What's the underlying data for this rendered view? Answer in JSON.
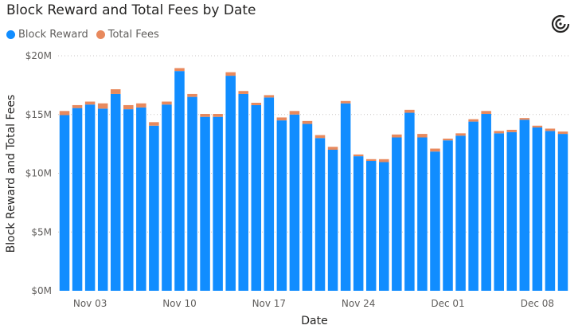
{
  "chart_data": {
    "type": "bar",
    "stacked": true,
    "title": "Block Reward and Total Fees by Date",
    "xlabel": "Date",
    "ylabel": "Block Reward and Total Fees",
    "ylim": [
      0,
      20
    ],
    "y_unit": "$M",
    "y_ticks": [
      "$0M",
      "$5M",
      "$10M",
      "$15M",
      "$20M"
    ],
    "y_tick_values": [
      0,
      5,
      10,
      15,
      20
    ],
    "x_tick_labels": [
      {
        "label": "Nov 03",
        "date": "2022-11-03"
      },
      {
        "label": "Nov 10",
        "date": "2022-11-10"
      },
      {
        "label": "Nov 17",
        "date": "2022-11-17"
      },
      {
        "label": "Nov 24",
        "date": "2022-11-24"
      },
      {
        "label": "Dec 01",
        "date": "2022-12-01"
      },
      {
        "label": "Dec 08",
        "date": "2022-12-08"
      }
    ],
    "grid": true,
    "legend_position": "top-left",
    "categories": [
      "2022-11-01",
      "2022-11-02",
      "2022-11-03",
      "2022-11-04",
      "2022-11-05",
      "2022-11-06",
      "2022-11-07",
      "2022-11-08",
      "2022-11-09",
      "2022-11-10",
      "2022-11-11",
      "2022-11-12",
      "2022-11-13",
      "2022-11-14",
      "2022-11-15",
      "2022-11-16",
      "2022-11-17",
      "2022-11-18",
      "2022-11-19",
      "2022-11-20",
      "2022-11-21",
      "2022-11-22",
      "2022-11-23",
      "2022-11-24",
      "2022-11-25",
      "2022-11-26",
      "2022-11-27",
      "2022-11-28",
      "2022-11-29",
      "2022-11-30",
      "2022-12-01",
      "2022-12-02",
      "2022-12-03",
      "2022-12-04",
      "2022-12-05",
      "2022-12-06",
      "2022-12-07",
      "2022-12-08",
      "2022-12-09",
      "2022-12-10"
    ],
    "series": [
      {
        "name": "Block Reward",
        "color": "#118dff",
        "values": [
          14.95,
          15.55,
          15.85,
          15.5,
          16.75,
          15.45,
          15.6,
          14.05,
          15.85,
          18.7,
          16.5,
          14.8,
          14.8,
          18.3,
          16.75,
          15.8,
          16.45,
          14.5,
          15.0,
          14.2,
          13.0,
          12.0,
          15.95,
          11.45,
          11.05,
          10.95,
          13.05,
          15.15,
          13.05,
          11.85,
          12.8,
          13.2,
          14.4,
          15.05,
          13.4,
          13.5,
          14.55,
          13.9,
          13.6,
          13.35
        ]
      },
      {
        "name": "Total Fees",
        "color": "#e8895d",
        "values": [
          0.35,
          0.25,
          0.25,
          0.45,
          0.4,
          0.35,
          0.35,
          0.3,
          0.25,
          0.25,
          0.25,
          0.25,
          0.25,
          0.3,
          0.25,
          0.2,
          0.2,
          0.25,
          0.3,
          0.25,
          0.25,
          0.25,
          0.2,
          0.15,
          0.15,
          0.25,
          0.25,
          0.25,
          0.3,
          0.25,
          0.15,
          0.2,
          0.2,
          0.25,
          0.2,
          0.2,
          0.15,
          0.15,
          0.2,
          0.2
        ]
      }
    ]
  },
  "icons": {
    "corner": "copilot-spiral-icon"
  }
}
